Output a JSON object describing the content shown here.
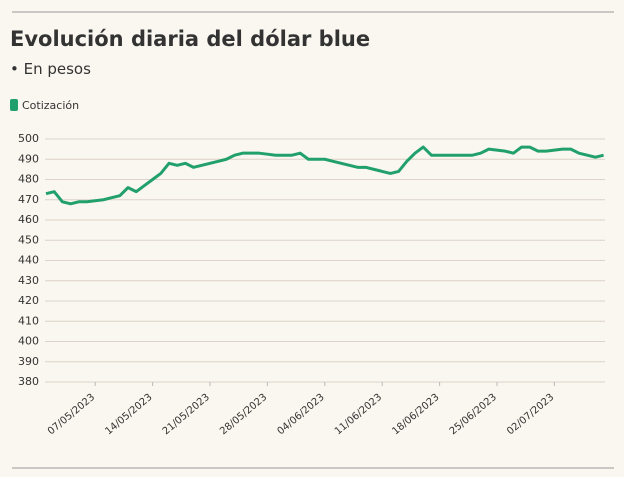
{
  "chart_data": {
    "type": "line",
    "title": "Evolución diaria del dólar blue",
    "subtitle": "• En pesos",
    "x": [
      "01/05/2023",
      "02/05/2023",
      "03/05/2023",
      "04/05/2023",
      "05/05/2023",
      "06/05/2023",
      "07/05/2023",
      "08/05/2023",
      "09/05/2023",
      "10/05/2023",
      "11/05/2023",
      "12/05/2023",
      "13/05/2023",
      "14/05/2023",
      "15/05/2023",
      "16/05/2023",
      "17/05/2023",
      "18/05/2023",
      "19/05/2023",
      "20/05/2023",
      "21/05/2023",
      "22/05/2023",
      "23/05/2023",
      "24/05/2023",
      "25/05/2023",
      "26/05/2023",
      "27/05/2023",
      "28/05/2023",
      "29/05/2023",
      "30/05/2023",
      "31/05/2023",
      "01/06/2023",
      "02/06/2023",
      "03/06/2023",
      "04/06/2023",
      "05/06/2023",
      "06/06/2023",
      "07/06/2023",
      "08/06/2023",
      "09/06/2023",
      "10/06/2023",
      "11/06/2023",
      "12/06/2023",
      "13/06/2023",
      "14/06/2023",
      "15/06/2023",
      "16/06/2023",
      "17/06/2023",
      "18/06/2023",
      "19/06/2023",
      "20/06/2023",
      "21/06/2023",
      "22/06/2023",
      "23/06/2023",
      "24/06/2023",
      "25/06/2023",
      "26/06/2023",
      "27/06/2023",
      "28/06/2023",
      "29/06/2023",
      "30/06/2023",
      "01/07/2023",
      "02/07/2023",
      "03/07/2023",
      "04/07/2023",
      "05/07/2023",
      "06/07/2023",
      "07/07/2023",
      "08/07/2023"
    ],
    "series": [
      {
        "name": "Cotización",
        "color": "#22a06b",
        "values": [
          473,
          474,
          469,
          468,
          469,
          469,
          469.5,
          470,
          471,
          472,
          476,
          474,
          477,
          480,
          483,
          488,
          487,
          488,
          486,
          487,
          488,
          489,
          490,
          492,
          493,
          493,
          493,
          492.5,
          492,
          492,
          492,
          493,
          490,
          490,
          490,
          489,
          488,
          487,
          486,
          486,
          485,
          484,
          483,
          484,
          489,
          493,
          496,
          492,
          492,
          492,
          492,
          492,
          492,
          493,
          495,
          494.5,
          494,
          493,
          496,
          496,
          494,
          494,
          494.5,
          495,
          495,
          493,
          492,
          491,
          492
        ]
      }
    ],
    "ylim": [
      380,
      500
    ],
    "yticks": [
      380,
      390,
      400,
      410,
      420,
      430,
      440,
      450,
      460,
      470,
      480,
      490,
      500
    ],
    "xticks": [
      "07/05/2023",
      "14/05/2023",
      "21/05/2023",
      "28/05/2023",
      "04/06/2023",
      "11/06/2023",
      "18/06/2023",
      "25/06/2023",
      "02/07/2023"
    ],
    "grid": true,
    "legend": "top-left"
  }
}
